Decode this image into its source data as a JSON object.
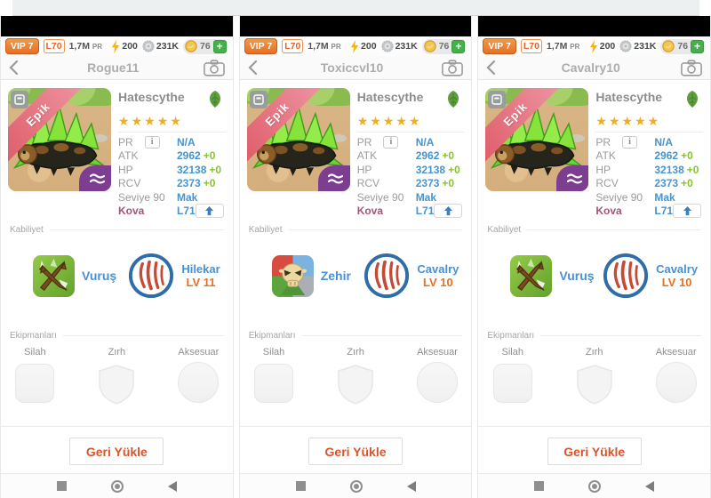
{
  "topbar": {
    "vip": "VIP 7",
    "level": "L70",
    "pr_value": "1,7M",
    "pr_suffix": "PR",
    "energy": "200",
    "medals": "231K",
    "coins": "76",
    "add_label": "+"
  },
  "panels": [
    {
      "header_title": "Rogue11",
      "skill1": {
        "name": "Vuruş",
        "icon": "claw-strike"
      },
      "skill2": {
        "name": "Hilekar",
        "level": "LV 11"
      }
    },
    {
      "header_title": "Toxiccvl10",
      "skill1": {
        "name": "Zehir",
        "icon": "poison-skull"
      },
      "skill2": {
        "name": "Cavalry",
        "level": "LV 10"
      }
    },
    {
      "header_title": "Cavalry10",
      "skill1": {
        "name": "Vuruş",
        "icon": "claw-strike"
      },
      "skill2": {
        "name": "Cavalry",
        "level": "LV 10"
      }
    }
  ],
  "card": {
    "name": "Hatescythe",
    "stars": 5,
    "rarity_ribbon": "Epik",
    "info_label": "i",
    "stats": [
      {
        "label": "PR",
        "value": "N/A",
        "bonus": "",
        "info": true,
        "upload": false
      },
      {
        "label": "ATK",
        "value": "2962",
        "bonus": "+0",
        "info": false,
        "upload": false
      },
      {
        "label": "HP",
        "value": "32138",
        "bonus": "+0",
        "info": false,
        "upload": false
      },
      {
        "label": "RCV",
        "value": "2373",
        "bonus": "+0",
        "info": false,
        "upload": false
      },
      {
        "label": "Seviye 90",
        "value": "Mak",
        "bonus": "",
        "info": false,
        "upload": false
      },
      {
        "label": "Kova",
        "value": "L71",
        "bonus": "",
        "info": false,
        "upload": true
      }
    ]
  },
  "sections": {
    "abilities": "Kabiliyet",
    "equipment": "Ekipmanları"
  },
  "equipment_slots": [
    {
      "label": "Silah",
      "shape": "square"
    },
    {
      "label": "Zırh",
      "shape": "shield"
    },
    {
      "label": "Aksesuar",
      "shape": "circle"
    }
  ],
  "restore_button": "Geri Yükle",
  "colors": {
    "accent_orange": "#e8701f",
    "value_blue": "#4694d1",
    "bonus_green": "#86c32e",
    "star_gold": "#f0ad1f",
    "vip_orange": "#ed7d31",
    "ribbon_red": "#dd5663",
    "badge_purple": "#7d3d90",
    "plus_green": "#43b04a"
  }
}
